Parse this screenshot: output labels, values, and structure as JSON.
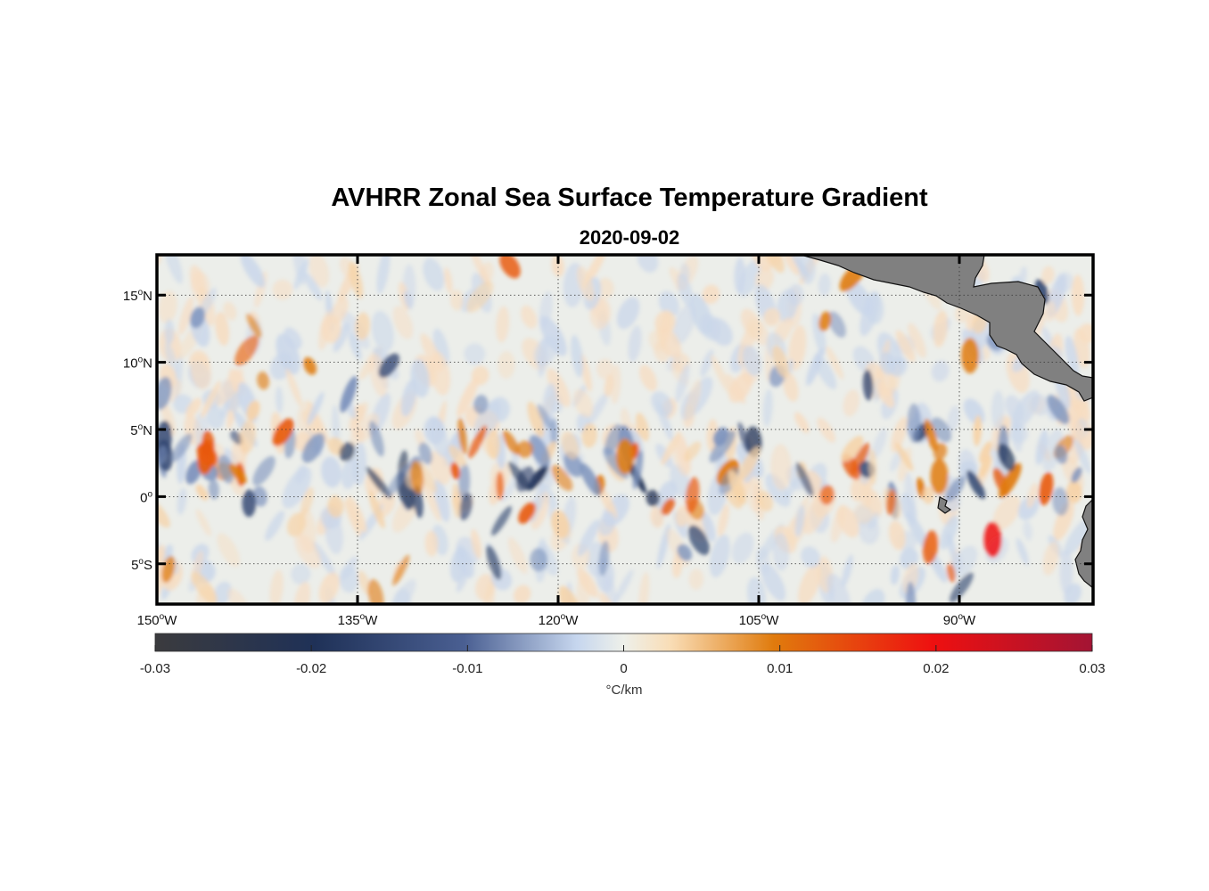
{
  "title": "AVHRR Zonal Sea Surface Temperature Gradient",
  "subtitle": "2020-09-02",
  "map": {
    "region": "Eastern Tropical Pacific",
    "lon_range": [
      -150,
      -80
    ],
    "lat_range": [
      -8,
      18
    ],
    "grid": "dotted",
    "land_color": "#808080",
    "lon_ticks": [
      {
        "deg": "150",
        "hemi": "W"
      },
      {
        "deg": "135",
        "hemi": "W"
      },
      {
        "deg": "120",
        "hemi": "W"
      },
      {
        "deg": "105",
        "hemi": "W"
      },
      {
        "deg": "90",
        "hemi": "W"
      }
    ],
    "lat_ticks": [
      {
        "deg": "15",
        "hemi": "N"
      },
      {
        "deg": "10",
        "hemi": "N"
      },
      {
        "deg": "5",
        "hemi": "N"
      },
      {
        "deg": "0",
        "hemi": ""
      },
      {
        "deg": "5",
        "hemi": "S"
      }
    ]
  },
  "colorbar": {
    "min": -0.03,
    "max": 0.03,
    "tick_labels": [
      "-0.03",
      "-0.02",
      "-0.01",
      "0",
      "0.01",
      "0.02",
      "0.03"
    ],
    "unit_label": "°C/km",
    "colors": {
      "neg_max": "#3a3a3a",
      "neg_mid": "#1f3157",
      "neg_low": "#7d93bd",
      "zero": "#ebeeeb",
      "pos_low": "#f6d3a8",
      "pos_mid": "#e07b0d",
      "pos_high": "#ee1010",
      "pos_max": "#a31434"
    }
  }
}
